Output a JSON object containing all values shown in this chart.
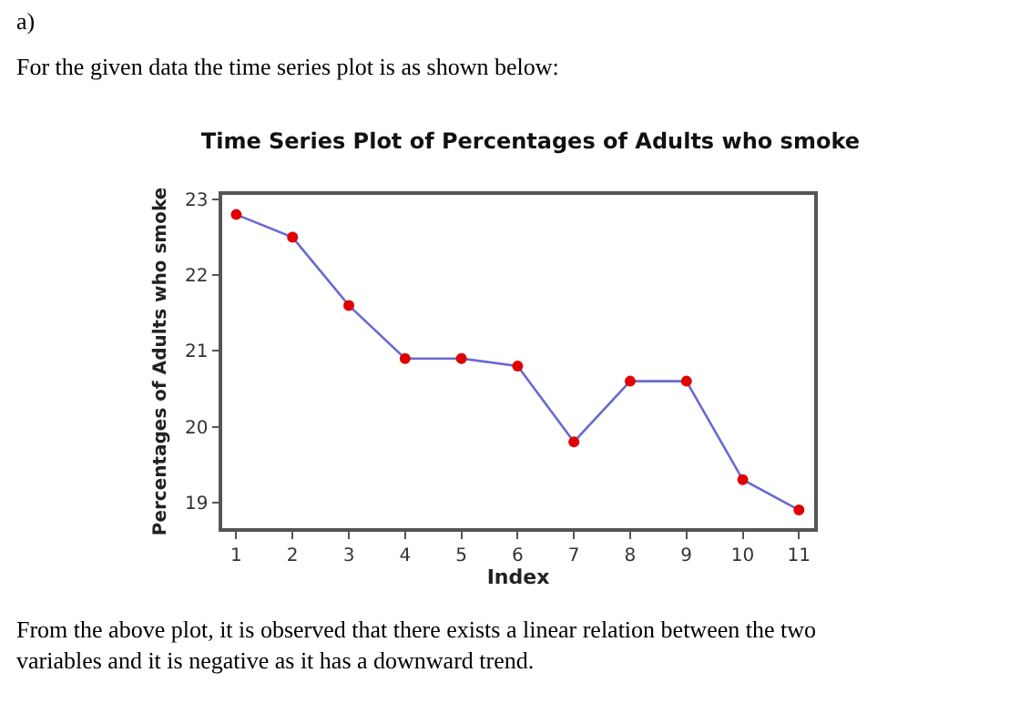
{
  "chart_data": {
    "type": "line",
    "title": "Time Series Plot of Percentages of Adults who smoke",
    "xlabel": "Index",
    "ylabel": "Percentages of Adults who smoke",
    "x": [
      1,
      2,
      3,
      4,
      5,
      6,
      7,
      8,
      9,
      10,
      11
    ],
    "series": [
      {
        "color": "#6a6ad0",
        "colors": [
          "#e00000",
          "#e00000",
          "#e00000",
          "#e00000",
          "#e00000",
          "#e00000",
          "#e00000",
          "#e00000",
          "#e00000",
          "#e00000",
          "#e00000"
        ],
        "values": [
          22.8,
          22.5,
          21.6,
          20.9,
          20.9,
          20.8,
          19.8,
          20.6,
          20.6,
          19.3,
          18.9
        ]
      }
    ],
    "xlim": [
      0.75,
      11.27
    ],
    "xticks": [
      1,
      2,
      3,
      4,
      5,
      6,
      7,
      8,
      9,
      10,
      11
    ],
    "ylim": [
      18.66,
      23.06
    ],
    "yticks": [
      19,
      20,
      21,
      22,
      23
    ],
    "marker": "circle",
    "line_style": "solid",
    "annotations": [
      "a)",
      "For the given data the time series plot is as shown below:",
      "From the above plot, it is observed that there exists a linear relation between the two variables and it is negative as it has a downward trend."
    ]
  }
}
